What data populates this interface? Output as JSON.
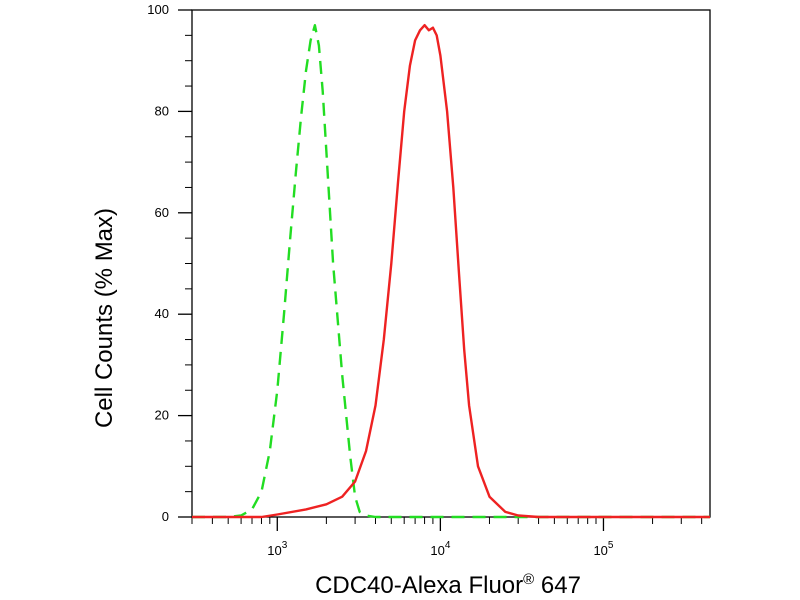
{
  "chart_data": {
    "type": "line",
    "title": "",
    "xlabel": "CDC40-Alexa Fluor",
    "xlabel_superscript": "®",
    "xlabel_suffix": " 647",
    "ylabel": "Cell Counts (% Max)",
    "x_scale": "log",
    "xlim": [
      300,
      450000
    ],
    "ylim": [
      0,
      100
    ],
    "grid": false,
    "legend": "none",
    "y_ticks": [
      {
        "value": 0,
        "label": "0"
      },
      {
        "value": 20,
        "label": "20"
      },
      {
        "value": 40,
        "label": "40"
      },
      {
        "value": 60,
        "label": "60"
      },
      {
        "value": 80,
        "label": "80"
      },
      {
        "value": 100,
        "label": "100"
      }
    ],
    "x_ticks": [
      {
        "value": 1000,
        "base": "10",
        "exp": "3"
      },
      {
        "value": 10000,
        "base": "10",
        "exp": "4"
      },
      {
        "value": 100000,
        "base": "10",
        "exp": "5"
      }
    ],
    "series": [
      {
        "color": "#22dd22",
        "style": "dashed",
        "x": [
          300,
          500,
          600,
          700,
          800,
          900,
          1000,
          1100,
          1200,
          1300,
          1400,
          1500,
          1600,
          1700,
          1800,
          1900,
          2000,
          2200,
          2500,
          2800,
          3000,
          3200,
          3500,
          4000,
          5000,
          10000,
          50000,
          450000
        ],
        "y": [
          0,
          0,
          0.3,
          1.5,
          5,
          13,
          25,
          40,
          55,
          68,
          79,
          88,
          94,
          97,
          93,
          84,
          72,
          50,
          28,
          12,
          4,
          1,
          0.3,
          0,
          0,
          0,
          0,
          0
        ]
      },
      {
        "color": "#ee2222",
        "style": "solid",
        "x": [
          300,
          800,
          1000,
          1500,
          2000,
          2500,
          3000,
          3500,
          4000,
          4500,
          5000,
          5500,
          6000,
          6500,
          7000,
          7500,
          8000,
          8500,
          9000,
          9500,
          10000,
          11000,
          12000,
          13000,
          14000,
          15000,
          17000,
          20000,
          25000,
          30000,
          40000,
          100000,
          450000
        ],
        "y": [
          0,
          0,
          0.5,
          1.5,
          2.5,
          4,
          7,
          13,
          22,
          35,
          50,
          66,
          80,
          89,
          94,
          96,
          97,
          96,
          96.5,
          95,
          91,
          80,
          65,
          48,
          33,
          22,
          10,
          4,
          1,
          0.3,
          0,
          0,
          0
        ]
      }
    ]
  }
}
